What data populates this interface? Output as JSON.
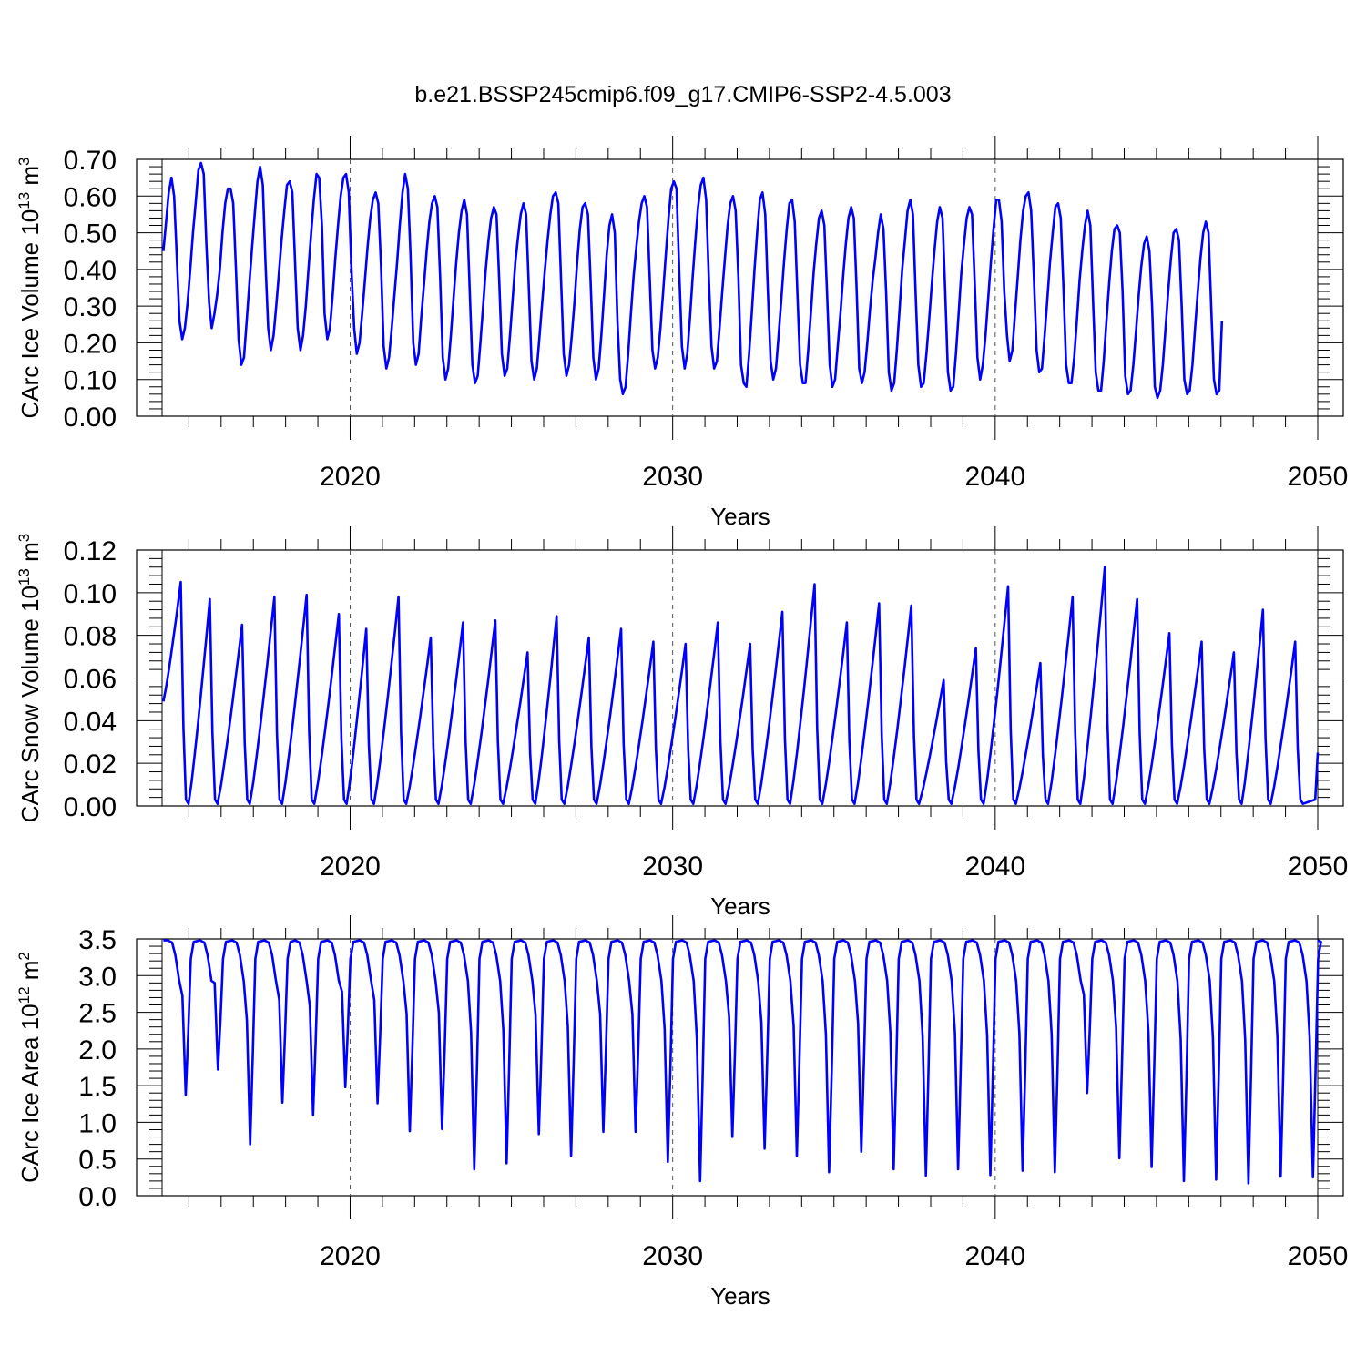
{
  "colors": {
    "series": "#0000ff",
    "axes": "#000000",
    "grid": "#555555",
    "background": "#ffffff"
  },
  "title": "b.e21.BSSP245cmip6.f09_g17.CMIP6-SSP2-4.5.003",
  "chart_data": [
    {
      "type": "line",
      "id": "ice-volume",
      "ylabel": {
        "main": "CArc Ice Volume 10",
        "sup": "13",
        "tail": " m",
        "sup2": "3"
      },
      "xlabel": "Years",
      "xlim": [
        2014.17,
        2050.0
      ],
      "ylim": [
        0.0,
        0.7
      ],
      "yticks": [
        0.0,
        0.1,
        0.2,
        0.3,
        0.4,
        0.5,
        0.6,
        0.7
      ],
      "yticklabels": [
        "0.00",
        "0.10",
        "0.20",
        "0.30",
        "0.40",
        "0.50",
        "0.60",
        "0.70"
      ],
      "xticks": [
        2020,
        2030,
        2040,
        2050
      ],
      "xticklabels": [
        "2020",
        "2030",
        "2040",
        "2050"
      ],
      "grid": "x dashed at decades",
      "series": [
        {
          "x_start": 2014.21,
          "x_step": 0.0833,
          "values": [
            0.45,
            0.53,
            0.61,
            0.65,
            0.6,
            0.43,
            0.26,
            0.21,
            0.24,
            0.31,
            0.4,
            0.5,
            0.58,
            0.67,
            0.69,
            0.66,
            0.47,
            0.31,
            0.24,
            0.28,
            0.33,
            0.4,
            0.5,
            0.58,
            0.62,
            0.62,
            0.58,
            0.4,
            0.21,
            0.14,
            0.16,
            0.26,
            0.36,
            0.46,
            0.55,
            0.64,
            0.68,
            0.63,
            0.42,
            0.24,
            0.18,
            0.22,
            0.3,
            0.39,
            0.48,
            0.56,
            0.63,
            0.64,
            0.61,
            0.42,
            0.24,
            0.18,
            0.22,
            0.3,
            0.4,
            0.5,
            0.59,
            0.66,
            0.65,
            0.52,
            0.28,
            0.21,
            0.24,
            0.33,
            0.43,
            0.52,
            0.6,
            0.65,
            0.66,
            0.61,
            0.4,
            0.24,
            0.17,
            0.2,
            0.28,
            0.37,
            0.46,
            0.54,
            0.59,
            0.61,
            0.58,
            0.41,
            0.19,
            0.13,
            0.16,
            0.24,
            0.33,
            0.42,
            0.52,
            0.61,
            0.66,
            0.62,
            0.44,
            0.2,
            0.14,
            0.17,
            0.27,
            0.36,
            0.45,
            0.53,
            0.58,
            0.6,
            0.57,
            0.38,
            0.16,
            0.1,
            0.13,
            0.22,
            0.32,
            0.42,
            0.5,
            0.56,
            0.59,
            0.55,
            0.35,
            0.14,
            0.09,
            0.11,
            0.2,
            0.3,
            0.4,
            0.48,
            0.54,
            0.57,
            0.55,
            0.37,
            0.17,
            0.11,
            0.13,
            0.22,
            0.32,
            0.42,
            0.49,
            0.55,
            0.58,
            0.55,
            0.35,
            0.15,
            0.1,
            0.13,
            0.22,
            0.31,
            0.4,
            0.48,
            0.55,
            0.6,
            0.61,
            0.58,
            0.37,
            0.17,
            0.11,
            0.14,
            0.22,
            0.31,
            0.42,
            0.51,
            0.57,
            0.58,
            0.55,
            0.37,
            0.16,
            0.1,
            0.13,
            0.22,
            0.33,
            0.44,
            0.52,
            0.55,
            0.5,
            0.26,
            0.1,
            0.06,
            0.08,
            0.17,
            0.28,
            0.38,
            0.46,
            0.53,
            0.58,
            0.6,
            0.57,
            0.38,
            0.18,
            0.13,
            0.16,
            0.24,
            0.34,
            0.44,
            0.54,
            0.62,
            0.64,
            0.62,
            0.39,
            0.19,
            0.13,
            0.17,
            0.27,
            0.38,
            0.48,
            0.57,
            0.63,
            0.65,
            0.59,
            0.38,
            0.19,
            0.13,
            0.15,
            0.24,
            0.34,
            0.43,
            0.52,
            0.58,
            0.6,
            0.56,
            0.38,
            0.14,
            0.09,
            0.08,
            0.17,
            0.28,
            0.4,
            0.5,
            0.59,
            0.61,
            0.55,
            0.34,
            0.15,
            0.1,
            0.13,
            0.22,
            0.32,
            0.42,
            0.51,
            0.58,
            0.59,
            0.53,
            0.33,
            0.14,
            0.09,
            0.09,
            0.18,
            0.28,
            0.39,
            0.47,
            0.54,
            0.56,
            0.52,
            0.34,
            0.14,
            0.08,
            0.1,
            0.19,
            0.28,
            0.38,
            0.47,
            0.54,
            0.57,
            0.54,
            0.35,
            0.13,
            0.09,
            0.12,
            0.2,
            0.29,
            0.37,
            0.43,
            0.5,
            0.55,
            0.51,
            0.34,
            0.12,
            0.07,
            0.09,
            0.18,
            0.29,
            0.4,
            0.48,
            0.56,
            0.59,
            0.55,
            0.33,
            0.14,
            0.08,
            0.09,
            0.17,
            0.26,
            0.36,
            0.45,
            0.53,
            0.57,
            0.54,
            0.34,
            0.12,
            0.07,
            0.08,
            0.17,
            0.28,
            0.39,
            0.47,
            0.54,
            0.57,
            0.55,
            0.36,
            0.16,
            0.1,
            0.14,
            0.22,
            0.32,
            0.42,
            0.51,
            0.59,
            0.59,
            0.53,
            0.34,
            0.22,
            0.15,
            0.18,
            0.28,
            0.38,
            0.48,
            0.56,
            0.6,
            0.61,
            0.56,
            0.38,
            0.18,
            0.12,
            0.13,
            0.22,
            0.32,
            0.42,
            0.5,
            0.57,
            0.58,
            0.54,
            0.35,
            0.14,
            0.09,
            0.09,
            0.16,
            0.26,
            0.37,
            0.45,
            0.52,
            0.56,
            0.52,
            0.32,
            0.12,
            0.07,
            0.07,
            0.15,
            0.26,
            0.36,
            0.45,
            0.51,
            0.52,
            0.5,
            0.34,
            0.11,
            0.06,
            0.07,
            0.14,
            0.23,
            0.33,
            0.41,
            0.47,
            0.49,
            0.45,
            0.3,
            0.08,
            0.05,
            0.07,
            0.14,
            0.24,
            0.34,
            0.43,
            0.5,
            0.51,
            0.48,
            0.3,
            0.1,
            0.06,
            0.07,
            0.14,
            0.24,
            0.34,
            0.43,
            0.5,
            0.53,
            0.5,
            0.3,
            0.1,
            0.06,
            0.07,
            0.26
          ]
        }
      ]
    },
    {
      "type": "line",
      "id": "snow-volume",
      "ylabel": {
        "main": "CArc Snow Volume 10",
        "sup": "13",
        "tail": " m",
        "sup2": "3"
      },
      "xlabel": "Years",
      "xlim": [
        2014.17,
        2050.0
      ],
      "ylim": [
        0.0,
        0.12
      ],
      "yticks": [
        0.0,
        0.02,
        0.04,
        0.06,
        0.08,
        0.1,
        0.12
      ],
      "yticklabels": [
        "0.00",
        "0.02",
        "0.04",
        "0.06",
        "0.08",
        "0.10",
        "0.12"
      ],
      "xticks": [
        2020,
        2030,
        2040,
        2050
      ],
      "xticklabels": [
        "2020",
        "2030",
        "2040",
        "2050"
      ],
      "grid": "x dashed at decades",
      "series": [
        {
          "x_start": 2014.21,
          "peaks": [
            0.105,
            0.097,
            0.085,
            0.098,
            0.099,
            0.09,
            0.083,
            0.098,
            0.079,
            0.086,
            0.087,
            0.072,
            0.089,
            0.079,
            0.083,
            0.077,
            0.076,
            0.086,
            0.076,
            0.091,
            0.104,
            0.086,
            0.095,
            0.094,
            0.059,
            0.074,
            0.103,
            0.067,
            0.098,
            0.112,
            0.097,
            0.081,
            0.077,
            0.072,
            0.092,
            0.077
          ],
          "peak_years": [
            2014.75,
            2015.65,
            2016.65,
            2017.65,
            2018.65,
            2019.65,
            2020.5,
            2021.5,
            2022.5,
            2023.5,
            2024.5,
            2025.5,
            2026.4,
            2027.4,
            2028.4,
            2029.4,
            2030.4,
            2031.4,
            2032.4,
            2033.4,
            2034.4,
            2035.4,
            2036.4,
            2037.4,
            2038.4,
            2039.4,
            2040.4,
            2041.4,
            2042.4,
            2043.4,
            2044.4,
            2045.4,
            2046.4,
            2047.4,
            2048.3,
            2049.3
          ],
          "trough": 0.001,
          "start": 0.049,
          "end": 0.025
        }
      ]
    },
    {
      "type": "line",
      "id": "ice-area",
      "ylabel": {
        "main": "CArc Ice Area 10",
        "sup": "12",
        "tail": " m",
        "sup2": "2"
      },
      "xlabel": "Years",
      "xlim": [
        2014.17,
        2050.0
      ],
      "ylim": [
        0.0,
        3.5
      ],
      "yticks": [
        0.0,
        0.5,
        1.0,
        1.5,
        2.0,
        2.5,
        3.0,
        3.5
      ],
      "yticklabels": [
        "0.0",
        "0.5",
        "1.0",
        "1.5",
        "2.0",
        "2.5",
        "3.0",
        "3.5"
      ],
      "xticks": [
        2020,
        2030,
        2040,
        2050
      ],
      "xticklabels": [
        "2020",
        "2030",
        "2040",
        "2050"
      ],
      "grid": "x dashed at decades",
      "series": [
        {
          "x_start": 2014.21,
          "minima": [
            1.37,
            1.72,
            0.7,
            1.27,
            1.1,
            1.48,
            1.26,
            0.88,
            0.91,
            0.36,
            0.44,
            0.84,
            0.54,
            0.87,
            0.87,
            0.46,
            0.2,
            0.8,
            0.64,
            0.54,
            0.32,
            0.6,
            0.36,
            0.27,
            0.36,
            0.28,
            0.34,
            0.32,
            1.4,
            0.51,
            0.39,
            0.2,
            0.22,
            0.17,
            0.26,
            0.25
          ],
          "min_years": [
            2014.9,
            2015.9,
            2016.9,
            2017.9,
            2018.85,
            2019.85,
            2020.85,
            2021.85,
            2022.85,
            2023.85,
            2024.85,
            2025.85,
            2026.85,
            2027.85,
            2028.85,
            2029.85,
            2030.85,
            2031.85,
            2032.85,
            2033.85,
            2034.85,
            2035.85,
            2036.85,
            2037.85,
            2038.85,
            2039.85,
            2040.85,
            2041.85,
            2042.85,
            2043.85,
            2044.85,
            2045.85,
            2046.85,
            2047.85,
            2048.85,
            2049.85
          ],
          "max": 3.48
        }
      ]
    }
  ]
}
